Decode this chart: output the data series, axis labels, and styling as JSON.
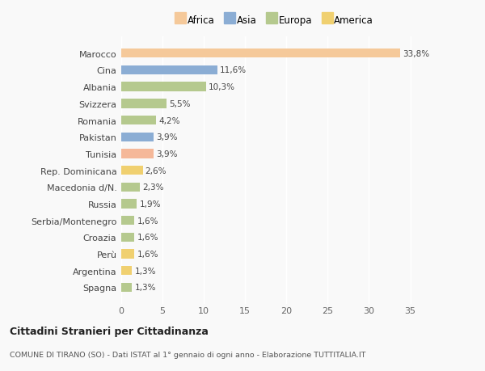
{
  "categories": [
    "Marocco",
    "Cina",
    "Albania",
    "Svizzera",
    "Romania",
    "Pakistan",
    "Tunisia",
    "Rep. Dominicana",
    "Macedonia d/N.",
    "Russia",
    "Serbia/Montenegro",
    "Croazia",
    "Perù",
    "Argentina",
    "Spagna"
  ],
  "values": [
    33.8,
    11.6,
    10.3,
    5.5,
    4.2,
    3.9,
    3.9,
    2.6,
    2.3,
    1.9,
    1.6,
    1.6,
    1.6,
    1.3,
    1.3
  ],
  "labels": [
    "33,8%",
    "11,6%",
    "10,3%",
    "5,5%",
    "4,2%",
    "3,9%",
    "3,9%",
    "2,6%",
    "2,3%",
    "1,9%",
    "1,6%",
    "1,6%",
    "1,6%",
    "1,3%",
    "1,3%"
  ],
  "colors": [
    "#f5c99a",
    "#8badd4",
    "#b5c98e",
    "#b5c98e",
    "#b5c98e",
    "#8badd4",
    "#f5b899",
    "#f0d070",
    "#b5c98e",
    "#b5c98e",
    "#b5c98e",
    "#b5c98e",
    "#f0d070",
    "#f0d070",
    "#b5c98e"
  ],
  "legend_labels": [
    "Africa",
    "Asia",
    "Europa",
    "America"
  ],
  "legend_colors": [
    "#f5c99a",
    "#8badd4",
    "#b5c98e",
    "#f0d070"
  ],
  "title1": "Cittadini Stranieri per Cittadinanza",
  "title2": "COMUNE DI TIRANO (SO) - Dati ISTAT al 1° gennaio di ogni anno - Elaborazione TUTTITALIA.IT",
  "xlim": [
    0,
    37
  ],
  "xticks": [
    0,
    5,
    10,
    15,
    20,
    25,
    30,
    35
  ],
  "background_color": "#f9f9f9",
  "bar_height": 0.55
}
